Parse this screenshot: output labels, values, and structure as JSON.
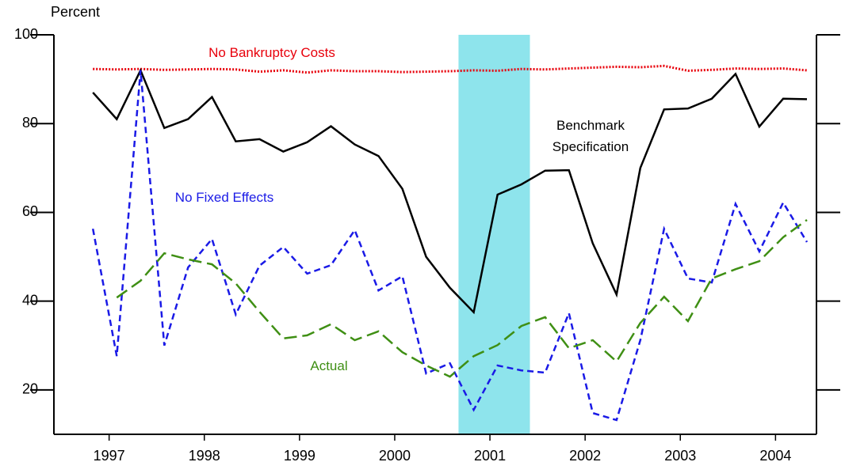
{
  "chart_data": {
    "type": "line",
    "y_label": "Percent",
    "x": [
      1997.33,
      1997.58,
      1997.83,
      1998.08,
      1998.33,
      1998.58,
      1998.83,
      1999.08,
      1999.33,
      1999.58,
      1999.83,
      2000.08,
      2000.33,
      2000.58,
      2000.83,
      2001.08,
      2001.33,
      2001.58,
      2001.83,
      2002.08,
      2002.33,
      2002.58,
      2002.83,
      2003.08,
      2003.33,
      2003.58,
      2003.83,
      2004.08,
      2004.33,
      2004.58,
      2004.83
    ],
    "xlim": [
      1996.92,
      2004.93
    ],
    "xticks": [
      {
        "value": 1997.5,
        "label": "1997"
      },
      {
        "value": 1998.5,
        "label": "1998"
      },
      {
        "value": 1999.5,
        "label": "1999"
      },
      {
        "value": 2000.5,
        "label": "2000"
      },
      {
        "value": 2001.5,
        "label": "2001"
      },
      {
        "value": 2002.5,
        "label": "2002"
      },
      {
        "value": 2003.5,
        "label": "2003"
      },
      {
        "value": 2004.5,
        "label": "2004"
      }
    ],
    "ylim": [
      10,
      100
    ],
    "yticks": [
      20,
      40,
      60,
      80,
      100
    ],
    "shade": {
      "x": [
        2001.17,
        2001.92
      ],
      "color": "#8ee4ec"
    },
    "series": [
      {
        "name": "No Bankruptcy Costs",
        "color": "#e8000b",
        "dash": "2,2",
        "values": [
          92.3,
          92.2,
          92.3,
          92.1,
          92.2,
          92.3,
          92.2,
          91.7,
          92,
          91.5,
          92,
          91.8,
          91.8,
          91.6,
          91.7,
          91.8,
          92,
          91.9,
          92.3,
          92.2,
          92.4,
          92.6,
          92.8,
          92.7,
          93,
          91.9,
          92.1,
          92.4,
          92.3,
          92.4,
          92
        ]
      },
      {
        "name": "Benchmark Specification",
        "color": "#000000",
        "dash": "none",
        "values": [
          87,
          81,
          92,
          79,
          81,
          86,
          76,
          76.5,
          73.7,
          75.8,
          79.4,
          75.3,
          72.7,
          65.3,
          50,
          43,
          37.5,
          64,
          66.3,
          69.4,
          69.5,
          53,
          41.5,
          70,
          83.2,
          83.4,
          85.6,
          91.2,
          79.3,
          85.6,
          85.5
        ]
      },
      {
        "name": "No Fixed Effects",
        "color": "#1a1ae6",
        "dash": "8,5",
        "values": [
          56.3,
          27.6,
          92,
          30,
          47.6,
          54,
          37,
          48,
          52.2,
          46.2,
          48.1,
          56,
          42.4,
          45.6,
          23.7,
          26,
          15.5,
          25.5,
          24.4,
          23.9,
          37.3,
          14.8,
          13.2,
          31.2,
          56.3,
          45.1,
          44.2,
          61.9,
          51.2,
          62.2,
          53.3
        ]
      },
      {
        "name": "Actual",
        "color": "#3f8f14",
        "dash": "16,7",
        "values": [
          null,
          40.8,
          44.6,
          50.8,
          49.4,
          48.3,
          44,
          37.6,
          31.6,
          32.3,
          34.8,
          31.2,
          33.2,
          28.5,
          25.5,
          23,
          27.6,
          30.1,
          34.4,
          36.4,
          29.4,
          31.2,
          26.4,
          35.1,
          41,
          35.5,
          45.1,
          47.2,
          49,
          54.4,
          58.3
        ]
      }
    ]
  }
}
